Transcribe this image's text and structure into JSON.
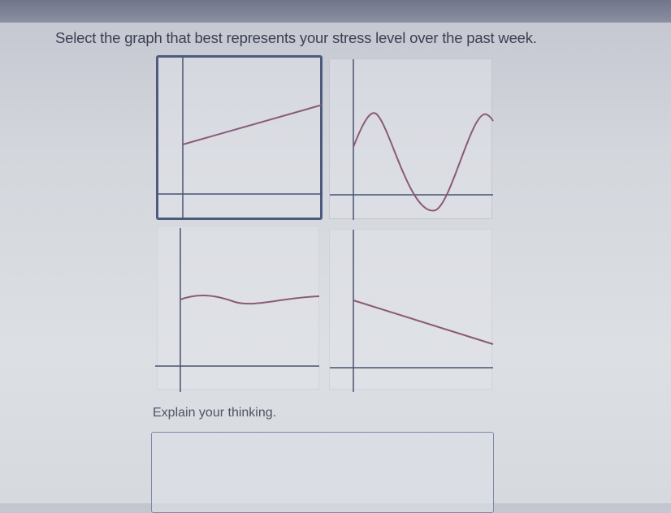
{
  "question": {
    "text": "Select the graph that best represents your stress level over the past week."
  },
  "options": [
    {
      "id": "increasing-line",
      "selected": true
    },
    {
      "id": "sine-wave",
      "selected": false
    },
    {
      "id": "gentle-wave",
      "selected": false
    },
    {
      "id": "decreasing-line",
      "selected": false
    }
  ],
  "explain": {
    "label": "Explain your thinking.",
    "value": ""
  },
  "colors": {
    "curve": "#8a5a78",
    "axis": "#4a5370",
    "selected_border": "#4c5a7e"
  }
}
